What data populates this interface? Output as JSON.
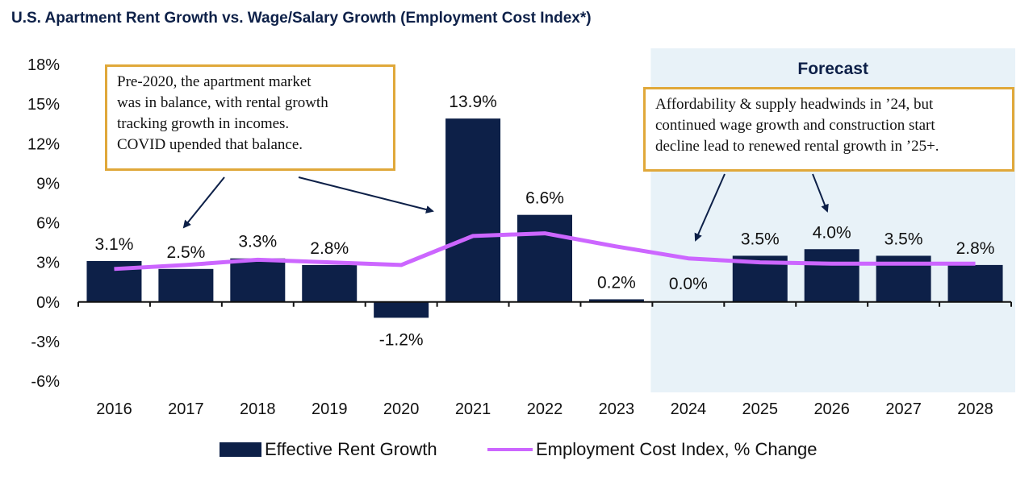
{
  "title": "U.S. Apartment Rent Growth vs. Wage/Salary Growth (Employment Cost Index*)",
  "chart_data": {
    "type": "bar",
    "categories": [
      "2016",
      "2017",
      "2018",
      "2019",
      "2020",
      "2021",
      "2022",
      "2023",
      "2024",
      "2025",
      "2026",
      "2027",
      "2028"
    ],
    "ylim": [
      -6,
      18
    ],
    "yticks": [
      18,
      15,
      12,
      9,
      6,
      3,
      0,
      -3,
      -6
    ],
    "ytick_labels": [
      "18%",
      "15%",
      "12%",
      "9%",
      "6%",
      "3%",
      "0%",
      "-3%",
      "-6%"
    ],
    "series": [
      {
        "name": "Effective Rent Growth",
        "kind": "bar",
        "color": "#0d2048",
        "values": [
          3.1,
          2.5,
          3.3,
          2.8,
          -1.2,
          13.9,
          6.6,
          0.2,
          0.0,
          3.5,
          4.0,
          3.5,
          2.8
        ],
        "labels": [
          "3.1%",
          "2.5%",
          "3.3%",
          "2.8%",
          "-1.2%",
          "13.9%",
          "6.6%",
          "0.2%",
          "0.0%",
          "3.5%",
          "4.0%",
          "3.5%",
          "2.8%"
        ]
      },
      {
        "name": "Employment Cost Index, % Change",
        "kind": "line",
        "color": "#cc66ff",
        "values": [
          2.5,
          2.8,
          3.2,
          3.0,
          2.8,
          5.0,
          5.2,
          4.2,
          3.3,
          3.0,
          2.9,
          2.9,
          2.9
        ]
      }
    ],
    "forecast": {
      "label": "Forecast",
      "start": "2024",
      "end": "2028",
      "shade_color": "#e8f2f8"
    },
    "legend_position": "bottom",
    "grid": false
  },
  "callouts": [
    {
      "lines": [
        "Pre-2020, the apartment market",
        "was in balance, with rental growth",
        "tracking growth in incomes.",
        "COVID upended that balance."
      ],
      "border_color": "#e0a83a"
    },
    {
      "lines": [
        "Affordability & supply headwinds in ’24, but",
        "continued wage growth and construction start",
        "decline lead to renewed rental growth in ’25+."
      ],
      "border_color": "#e0a83a"
    }
  ]
}
